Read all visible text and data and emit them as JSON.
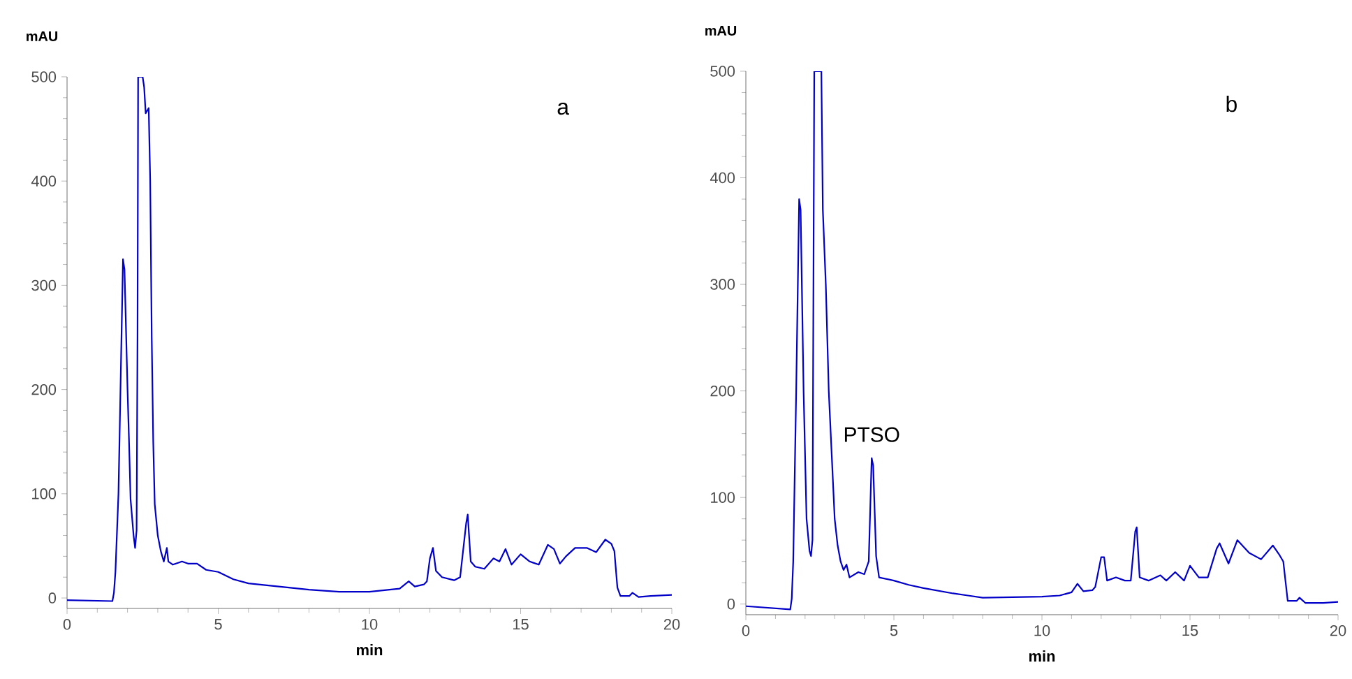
{
  "chart_data": [
    {
      "type": "line",
      "xlabel": "min",
      "ylabel": "mAU",
      "annotations": [
        "a"
      ],
      "xlim": [
        0,
        20
      ],
      "xticks": [
        0,
        5,
        10,
        15,
        20
      ],
      "ylim": [
        -10,
        500
      ],
      "yticks": [
        0,
        100,
        200,
        300,
        400,
        500
      ],
      "x": [
        0,
        1.5,
        1.55,
        1.6,
        1.7,
        1.8,
        1.85,
        1.9,
        2.0,
        2.05,
        2.1,
        2.2,
        2.25,
        2.3,
        2.33,
        2.35,
        2.5,
        2.55,
        2.6,
        2.7,
        2.75,
        2.8,
        2.85,
        2.9,
        3.0,
        3.1,
        3.2,
        3.3,
        3.35,
        3.5,
        3.8,
        4.0,
        4.3,
        4.6,
        5.0,
        5.5,
        6,
        7,
        8,
        9,
        10,
        11,
        11.3,
        11.5,
        11.8,
        11.9,
        12.0,
        12.1,
        12.2,
        12.4,
        12.8,
        13.0,
        13.2,
        13.25,
        13.35,
        13.5,
        13.8,
        14.1,
        14.3,
        14.5,
        14.7,
        15.0,
        15.3,
        15.6,
        15.9,
        16.1,
        16.3,
        16.5,
        16.8,
        17.2,
        17.5,
        17.8,
        18.0,
        18.1,
        18.2,
        18.3,
        18.6,
        18.7,
        18.9,
        19.3,
        20
      ],
      "series": [
        {
          "color": "#0000c8",
          "values": [
            -2,
            -3,
            5,
            25,
            100,
            250,
            325,
            315,
            200,
            150,
            95,
            60,
            48,
            65,
            250,
            500,
            500,
            490,
            465,
            470,
            400,
            250,
            150,
            90,
            60,
            45,
            35,
            48,
            35,
            32,
            35,
            33,
            33,
            27,
            25,
            18,
            14,
            11,
            8,
            6,
            6,
            9,
            16,
            11,
            13,
            16,
            38,
            48,
            26,
            20,
            17,
            20,
            72,
            80,
            35,
            30,
            28,
            38,
            35,
            47,
            32,
            42,
            35,
            32,
            51,
            47,
            33,
            40,
            48,
            48,
            44,
            56,
            52,
            45,
            10,
            2,
            2,
            5,
            1,
            2,
            3
          ]
        }
      ]
    },
    {
      "type": "line",
      "xlabel": "min",
      "ylabel": "mAU",
      "annotations": [
        "b",
        {
          "text": "PTSO",
          "x": 4.25,
          "y": 137
        }
      ],
      "xlim": [
        0,
        20
      ],
      "xticks": [
        0,
        5,
        10,
        15,
        20
      ],
      "ylim": [
        -10,
        500
      ],
      "yticks": [
        0,
        100,
        200,
        300,
        400,
        500
      ],
      "x": [
        0,
        1.5,
        1.55,
        1.6,
        1.7,
        1.8,
        1.85,
        1.95,
        2.05,
        2.15,
        2.2,
        2.25,
        2.31,
        2.35,
        2.5,
        2.55,
        2.6,
        2.7,
        2.8,
        2.9,
        3.0,
        3.1,
        3.2,
        3.3,
        3.4,
        3.5,
        3.8,
        4.0,
        4.15,
        4.25,
        4.3,
        4.4,
        4.5,
        5,
        5.5,
        6,
        7,
        7.5,
        8,
        10,
        10.6,
        11,
        11.2,
        11.4,
        11.7,
        11.8,
        12.0,
        12.1,
        12.2,
        12.5,
        12.8,
        13.0,
        13.15,
        13.2,
        13.3,
        13.6,
        14.0,
        14.2,
        14.5,
        14.8,
        15.0,
        15.3,
        15.6,
        15.9,
        16.0,
        16.3,
        16.6,
        17.0,
        17.4,
        17.8,
        18.0,
        18.15,
        18.3,
        18.6,
        18.7,
        18.9,
        19.5,
        20
      ],
      "series": [
        {
          "color": "#0000c8",
          "values": [
            -2,
            -5,
            5,
            40,
            200,
            380,
            370,
            200,
            80,
            50,
            45,
            60,
            500,
            500,
            500,
            500,
            370,
            300,
            200,
            140,
            80,
            55,
            40,
            32,
            37,
            25,
            30,
            28,
            40,
            137,
            130,
            45,
            25,
            22,
            18,
            15,
            10,
            8,
            6,
            7,
            8,
            11,
            19,
            12,
            13,
            16,
            44,
            44,
            22,
            25,
            22,
            22,
            68,
            72,
            25,
            22,
            27,
            22,
            30,
            22,
            36,
            25,
            25,
            52,
            57,
            38,
            60,
            48,
            42,
            55,
            47,
            40,
            3,
            3,
            6,
            1,
            1,
            2
          ]
        }
      ]
    }
  ]
}
